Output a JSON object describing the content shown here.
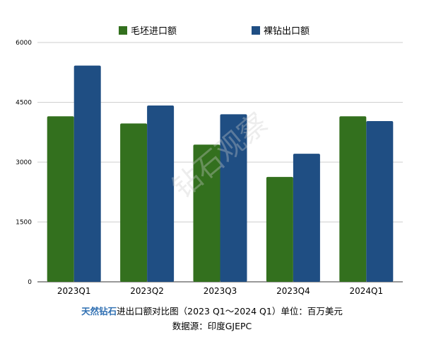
{
  "chart_data": {
    "type": "bar",
    "categories": [
      "2023Q1",
      "2023Q2",
      "2023Q3",
      "2023Q4",
      "2024Q1"
    ],
    "series": [
      {
        "name": "毛坯进口额",
        "color": "#33701e",
        "values": [
          4150,
          3970,
          3440,
          2630,
          4150
        ]
      },
      {
        "name": "裸钻出口额",
        "color": "#1f4e83",
        "values": [
          5420,
          4420,
          4200,
          3210,
          4030
        ]
      }
    ],
    "ylim": [
      0,
      6000
    ],
    "yticks": [
      0,
      1500,
      3000,
      4500,
      6000
    ],
    "grid": true,
    "legend_position": "top-center"
  },
  "watermark": "钻石观察",
  "caption": {
    "brand": "天然钻石",
    "title": "进出口额对比图（2023 Q1～2024 Q1）单位：百万美元",
    "source": "数据源：印度GJEPC"
  }
}
